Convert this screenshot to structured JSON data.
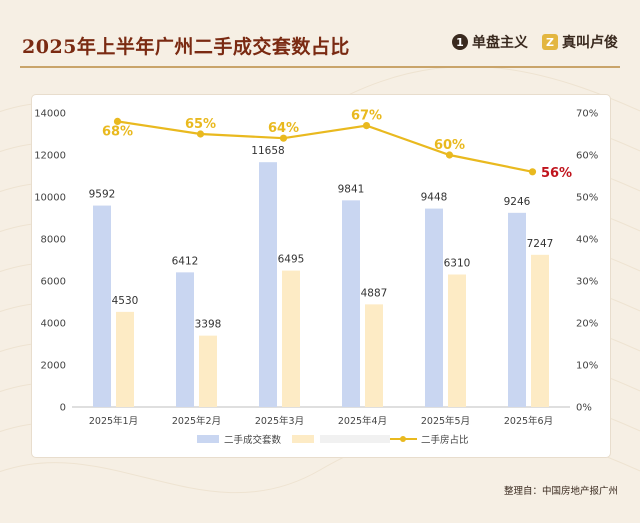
{
  "header": {
    "title": "2025年上半年广州二手成交套数占比",
    "brand_left": "单盘主义",
    "brand_left_mark": "1",
    "brand_right": "真叫卢俊",
    "brand_right_mark": "Z"
  },
  "footer": {
    "source": "整理自：中国房地产报广州"
  },
  "colors": {
    "bar_primary": "#c9d6f1",
    "bar_secondary": "#fdebc5",
    "line": "#e9b91f",
    "line_label": "#e9b91f",
    "last_label": "#c0141d",
    "title": "#7a2a12"
  },
  "chart_data": {
    "type": "bar",
    "categories": [
      "2025年1月",
      "2025年2月",
      "2025年3月",
      "2025年4月",
      "2025年5月",
      "2025年6月"
    ],
    "series": [
      {
        "name": "二手成交套数",
        "values": [
          9592,
          6412,
          11658,
          9841,
          9448,
          9246
        ]
      },
      {
        "name": "",
        "values": [
          4530,
          3398,
          6495,
          4887,
          6310,
          7247
        ]
      }
    ],
    "line_series": {
      "name": "二手房占比",
      "values": [
        68,
        65,
        64,
        67,
        60,
        56
      ],
      "labels": [
        "68%",
        "65%",
        "64%",
        "67%",
        "60%",
        "56%"
      ]
    },
    "ylim": [
      0,
      14000
    ],
    "y_ticks": [
      0,
      2000,
      4000,
      6000,
      8000,
      10000,
      12000,
      14000
    ],
    "y2lim": [
      0,
      70
    ],
    "y2_ticks": [
      "0%",
      "10%",
      "20%",
      "30%",
      "40%",
      "50%",
      "60%",
      "70%"
    ],
    "legend_position": "bottom",
    "grid": false
  }
}
